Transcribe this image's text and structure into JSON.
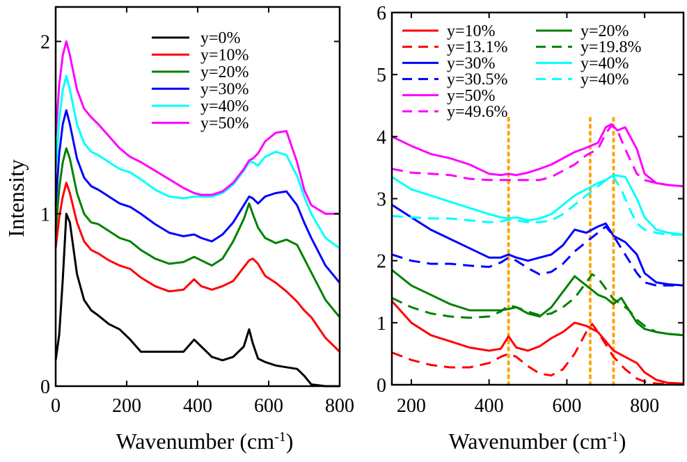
{
  "chart_data": [
    {
      "type": "line",
      "panel": "left",
      "xlabel": "Wavenumber (cm",
      "xlabel_sup": "-1",
      "xlabel_close": ")",
      "ylabel": "Intensity",
      "xlim": [
        0,
        800
      ],
      "ylim": [
        0,
        2.2
      ],
      "xticks": [
        0,
        200,
        400,
        600,
        800
      ],
      "xtick_labels": [
        "0",
        "200",
        "400",
        "600",
        "800"
      ],
      "yticks": [
        0,
        1,
        2
      ],
      "ytick_labels": [
        "0",
        "1",
        "2"
      ],
      "legend_position": "top-right",
      "series": [
        {
          "name": "y=0%",
          "color": "#000000",
          "dash": "solid",
          "offset": 0.0,
          "x": [
            0,
            10,
            20,
            30,
            40,
            60,
            80,
            100,
            120,
            150,
            180,
            210,
            240,
            280,
            320,
            360,
            390,
            410,
            440,
            470,
            500,
            530,
            545,
            555,
            570,
            590,
            620,
            650,
            680,
            700,
            720,
            760,
            800
          ],
          "y": [
            0.15,
            0.3,
            0.62,
            1.0,
            0.95,
            0.65,
            0.5,
            0.44,
            0.41,
            0.36,
            0.33,
            0.27,
            0.2,
            0.2,
            0.2,
            0.2,
            0.27,
            0.23,
            0.17,
            0.15,
            0.17,
            0.23,
            0.33,
            0.25,
            0.16,
            0.14,
            0.12,
            0.11,
            0.1,
            0.06,
            0.01,
            0.0,
            0.0
          ]
        },
        {
          "name": "y=10%",
          "color": "#ff0000",
          "dash": "solid",
          "offset": 0.2,
          "x": [
            0,
            10,
            20,
            30,
            40,
            60,
            80,
            100,
            120,
            150,
            180,
            210,
            240,
            280,
            320,
            360,
            390,
            410,
            440,
            470,
            500,
            530,
            545,
            555,
            570,
            590,
            620,
            650,
            680,
            700,
            720,
            760,
            800
          ],
          "y": [
            0.8,
            0.98,
            1.1,
            1.18,
            1.12,
            0.95,
            0.84,
            0.79,
            0.77,
            0.73,
            0.7,
            0.68,
            0.63,
            0.58,
            0.55,
            0.56,
            0.62,
            0.58,
            0.56,
            0.58,
            0.61,
            0.69,
            0.73,
            0.74,
            0.71,
            0.64,
            0.6,
            0.55,
            0.49,
            0.44,
            0.4,
            0.28,
            0.2
          ]
        },
        {
          "name": "y=20%",
          "color": "#008000",
          "dash": "solid",
          "offset": 0.4,
          "x": [
            0,
            10,
            20,
            30,
            40,
            60,
            80,
            100,
            120,
            150,
            180,
            210,
            240,
            280,
            320,
            360,
            390,
            410,
            440,
            470,
            500,
            530,
            545,
            555,
            570,
            590,
            620,
            650,
            680,
            700,
            720,
            760,
            800
          ],
          "y": [
            0.9,
            1.15,
            1.3,
            1.38,
            1.32,
            1.12,
            1.0,
            0.95,
            0.94,
            0.9,
            0.86,
            0.84,
            0.79,
            0.74,
            0.71,
            0.72,
            0.75,
            0.73,
            0.7,
            0.74,
            0.84,
            0.97,
            1.06,
            1.0,
            0.92,
            0.86,
            0.83,
            0.85,
            0.82,
            0.74,
            0.66,
            0.5,
            0.4
          ]
        },
        {
          "name": "y=30%",
          "color": "#0000ff",
          "dash": "solid",
          "offset": 0.6,
          "x": [
            0,
            10,
            20,
            30,
            40,
            60,
            80,
            100,
            120,
            150,
            180,
            210,
            240,
            280,
            320,
            360,
            390,
            410,
            440,
            470,
            500,
            530,
            545,
            555,
            570,
            590,
            620,
            650,
            680,
            700,
            720,
            760,
            800
          ],
          "y": [
            1.05,
            1.35,
            1.52,
            1.6,
            1.52,
            1.32,
            1.21,
            1.16,
            1.14,
            1.1,
            1.06,
            1.04,
            1.0,
            0.94,
            0.89,
            0.87,
            0.88,
            0.86,
            0.84,
            0.88,
            0.95,
            1.05,
            1.1,
            1.09,
            1.06,
            1.1,
            1.12,
            1.13,
            1.05,
            0.95,
            0.86,
            0.7,
            0.6
          ]
        },
        {
          "name": "y=40%",
          "color": "#00ffff",
          "dash": "solid",
          "offset": 0.8,
          "x": [
            0,
            10,
            20,
            30,
            40,
            60,
            80,
            100,
            120,
            150,
            180,
            210,
            240,
            280,
            320,
            360,
            390,
            410,
            440,
            470,
            500,
            530,
            545,
            555,
            570,
            590,
            620,
            650,
            680,
            700,
            720,
            760,
            800
          ],
          "y": [
            1.25,
            1.55,
            1.72,
            1.8,
            1.72,
            1.52,
            1.41,
            1.36,
            1.34,
            1.3,
            1.26,
            1.24,
            1.2,
            1.14,
            1.1,
            1.09,
            1.1,
            1.1,
            1.1,
            1.12,
            1.17,
            1.25,
            1.3,
            1.3,
            1.28,
            1.33,
            1.36,
            1.34,
            1.22,
            1.1,
            1.0,
            0.86,
            0.8
          ]
        },
        {
          "name": "y=50%",
          "color": "#ff00ff",
          "dash": "solid",
          "offset": 1.0,
          "x": [
            0,
            10,
            20,
            30,
            40,
            60,
            80,
            100,
            120,
            150,
            180,
            210,
            240,
            280,
            320,
            360,
            390,
            410,
            440,
            470,
            500,
            530,
            545,
            555,
            570,
            590,
            620,
            650,
            680,
            700,
            720,
            760,
            800
          ],
          "y": [
            1.45,
            1.75,
            1.92,
            2.0,
            1.92,
            1.72,
            1.61,
            1.56,
            1.52,
            1.45,
            1.38,
            1.33,
            1.3,
            1.25,
            1.2,
            1.15,
            1.12,
            1.11,
            1.11,
            1.13,
            1.18,
            1.26,
            1.31,
            1.32,
            1.35,
            1.42,
            1.47,
            1.48,
            1.3,
            1.14,
            1.05,
            1.0,
            1.0
          ]
        }
      ]
    },
    {
      "type": "line",
      "panel": "right",
      "xlabel": "Wavenumber (cm",
      "xlabel_sup": "-1",
      "xlabel_close": ")",
      "ylabel": "",
      "xlim": [
        150,
        900
      ],
      "ylim": [
        0,
        6
      ],
      "xticks": [
        200,
        400,
        600,
        800
      ],
      "xtick_labels": [
        "200",
        "400",
        "600",
        "800"
      ],
      "yticks": [
        0,
        1,
        2,
        3,
        4,
        5,
        6
      ],
      "ytick_labels": [
        "0",
        "1",
        "2",
        "3",
        "4",
        "5",
        "6"
      ],
      "legend_position": "top",
      "reference_lines": {
        "x": [
          450,
          660,
          720
        ],
        "color": "#ffa500",
        "dash": "dotted"
      },
      "series": [
        {
          "name": "y=10%",
          "color": "#ff0000",
          "dash": "solid",
          "x": [
            150,
            200,
            250,
            300,
            350,
            400,
            430,
            450,
            470,
            500,
            530,
            560,
            590,
            620,
            650,
            680,
            700,
            720,
            750,
            780,
            800,
            830,
            860,
            900
          ],
          "y": [
            1.35,
            1.0,
            0.8,
            0.7,
            0.6,
            0.55,
            0.58,
            0.78,
            0.6,
            0.55,
            0.62,
            0.75,
            0.85,
            1.0,
            0.95,
            0.85,
            0.7,
            0.55,
            0.45,
            0.35,
            0.2,
            0.08,
            0.03,
            0.02
          ]
        },
        {
          "name": "y=13.1%",
          "color": "#ff0000",
          "dash": "dashed",
          "x": [
            150,
            200,
            250,
            300,
            350,
            400,
            430,
            450,
            470,
            500,
            530,
            560,
            590,
            620,
            650,
            665,
            680,
            700,
            720,
            750,
            780,
            800,
            830,
            860,
            900
          ],
          "y": [
            0.52,
            0.4,
            0.32,
            0.28,
            0.28,
            0.35,
            0.45,
            0.5,
            0.45,
            0.3,
            0.18,
            0.15,
            0.25,
            0.5,
            0.85,
            0.98,
            0.85,
            0.65,
            0.45,
            0.25,
            0.1,
            0.05,
            0.02,
            0.01,
            0.0
          ]
        },
        {
          "name": "y=30%",
          "color": "#0000ff",
          "dash": "solid",
          "x": [
            150,
            200,
            250,
            300,
            350,
            400,
            430,
            450,
            470,
            500,
            530,
            560,
            590,
            620,
            650,
            680,
            700,
            720,
            750,
            780,
            800,
            830,
            860,
            900
          ],
          "y": [
            2.9,
            2.7,
            2.5,
            2.35,
            2.2,
            2.05,
            2.05,
            2.1,
            2.05,
            2.0,
            2.05,
            2.1,
            2.25,
            2.5,
            2.45,
            2.55,
            2.6,
            2.4,
            2.3,
            2.1,
            1.8,
            1.65,
            1.62,
            1.6
          ]
        },
        {
          "name": "y=30.5%",
          "color": "#0000ff",
          "dash": "dashed",
          "x": [
            150,
            200,
            250,
            300,
            350,
            400,
            430,
            450,
            470,
            500,
            530,
            560,
            590,
            620,
            650,
            680,
            700,
            720,
            750,
            780,
            800,
            830,
            860,
            900
          ],
          "y": [
            2.1,
            2.0,
            1.95,
            1.95,
            1.92,
            1.9,
            1.97,
            2.05,
            2.0,
            1.88,
            1.78,
            1.82,
            1.95,
            2.15,
            2.3,
            2.45,
            2.55,
            2.4,
            2.1,
            1.8,
            1.65,
            1.6,
            1.6,
            1.6
          ]
        },
        {
          "name": "y=50%",
          "color": "#ff00ff",
          "dash": "solid",
          "x": [
            150,
            200,
            250,
            300,
            350,
            400,
            430,
            450,
            470,
            500,
            530,
            560,
            590,
            620,
            650,
            680,
            700,
            715,
            730,
            750,
            780,
            800,
            830,
            860,
            900
          ],
          "y": [
            4.0,
            3.85,
            3.72,
            3.65,
            3.55,
            3.4,
            3.38,
            3.4,
            3.38,
            3.42,
            3.48,
            3.55,
            3.65,
            3.75,
            3.82,
            3.9,
            4.15,
            4.2,
            4.1,
            4.15,
            3.8,
            3.4,
            3.25,
            3.22,
            3.2
          ]
        },
        {
          "name": "y=49.6%",
          "color": "#ff00ff",
          "dash": "dashed",
          "x": [
            150,
            200,
            250,
            300,
            350,
            400,
            430,
            450,
            470,
            500,
            530,
            560,
            590,
            620,
            650,
            680,
            700,
            715,
            730,
            750,
            780,
            800,
            830,
            860,
            900
          ],
          "y": [
            3.48,
            3.42,
            3.4,
            3.38,
            3.32,
            3.3,
            3.3,
            3.3,
            3.3,
            3.3,
            3.3,
            3.35,
            3.45,
            3.55,
            3.7,
            3.8,
            4.05,
            4.18,
            4.1,
            3.8,
            3.4,
            3.3,
            3.25,
            3.22,
            3.2
          ]
        },
        {
          "name": "y=20%",
          "color": "#008000",
          "dash": "solid",
          "x": [
            150,
            200,
            250,
            300,
            350,
            400,
            430,
            450,
            470,
            500,
            530,
            560,
            590,
            620,
            650,
            680,
            700,
            720,
            740,
            760,
            780,
            800,
            830,
            860,
            900
          ],
          "y": [
            1.85,
            1.6,
            1.45,
            1.3,
            1.2,
            1.2,
            1.2,
            1.22,
            1.25,
            1.15,
            1.1,
            1.25,
            1.5,
            1.75,
            1.6,
            1.45,
            1.4,
            1.3,
            1.4,
            1.2,
            1.0,
            0.9,
            0.85,
            0.82,
            0.8
          ]
        },
        {
          "name": "y=19.8%",
          "color": "#008000",
          "dash": "dashed",
          "x": [
            150,
            200,
            250,
            300,
            350,
            400,
            430,
            450,
            470,
            500,
            530,
            560,
            590,
            620,
            650,
            665,
            680,
            700,
            720,
            740,
            760,
            780,
            800,
            830,
            860,
            900
          ],
          "y": [
            1.4,
            1.25,
            1.15,
            1.1,
            1.08,
            1.1,
            1.18,
            1.28,
            1.25,
            1.18,
            1.12,
            1.15,
            1.25,
            1.4,
            1.65,
            1.78,
            1.72,
            1.55,
            1.38,
            1.3,
            1.2,
            1.05,
            0.95,
            0.85,
            0.82,
            0.8
          ]
        },
        {
          "name": "y=40%",
          "color": "#00ffff",
          "dash": "solid",
          "x": [
            150,
            200,
            250,
            300,
            350,
            400,
            430,
            450,
            470,
            500,
            530,
            560,
            590,
            620,
            650,
            680,
            700,
            720,
            750,
            780,
            800,
            830,
            860,
            900
          ],
          "y": [
            3.35,
            3.15,
            3.05,
            2.95,
            2.85,
            2.75,
            2.7,
            2.68,
            2.7,
            2.65,
            2.68,
            2.75,
            2.9,
            3.05,
            3.15,
            3.25,
            3.3,
            3.38,
            3.35,
            3.0,
            2.7,
            2.5,
            2.45,
            2.42
          ]
        },
        {
          "name": "y=40%",
          "color": "#00ffff",
          "dash": "dashed",
          "x": [
            150,
            200,
            250,
            300,
            350,
            400,
            430,
            450,
            470,
            500,
            530,
            560,
            590,
            620,
            650,
            680,
            700,
            720,
            740,
            760,
            780,
            800,
            830,
            860,
            900
          ],
          "y": [
            2.72,
            2.7,
            2.68,
            2.68,
            2.65,
            2.62,
            2.63,
            2.66,
            2.65,
            2.62,
            2.62,
            2.65,
            2.75,
            2.9,
            3.05,
            3.2,
            3.3,
            3.35,
            3.15,
            2.85,
            2.6,
            2.5,
            2.45,
            2.42,
            2.42
          ]
        }
      ]
    }
  ]
}
